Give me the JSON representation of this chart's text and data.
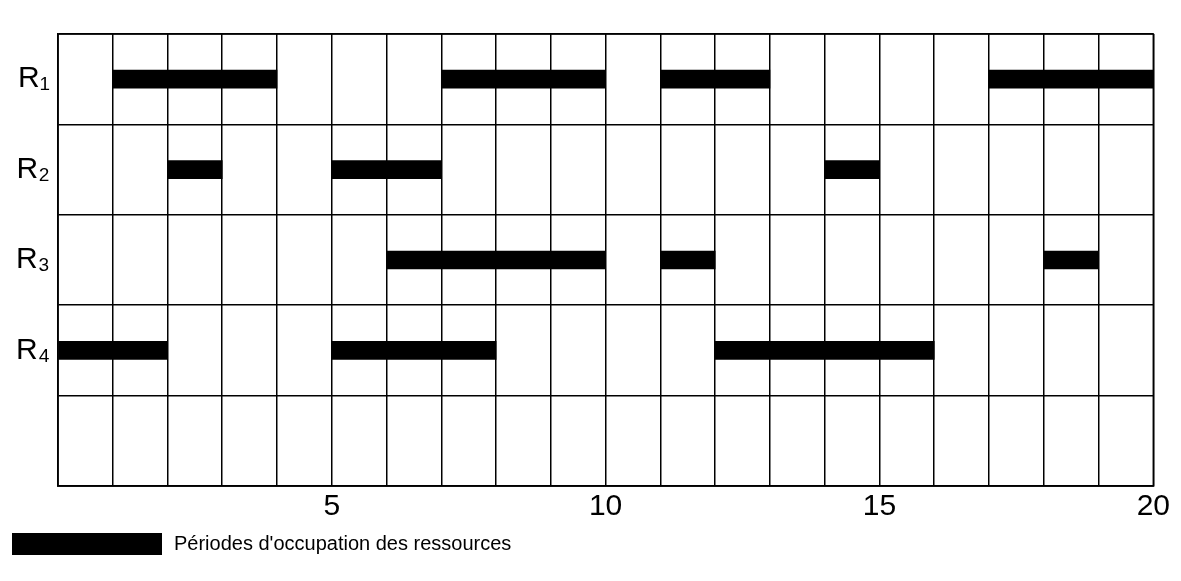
{
  "chart_data": {
    "type": "bar",
    "orientation": "horizontal",
    "categories": [
      "R₁",
      "R₂",
      "R₃",
      "R₄",
      null
    ],
    "series": [
      {
        "name": "Périodes d'occupation des ressources",
        "color": "#000000",
        "base": [
          1,
          2,
          6,
          0,
          null
        ],
        "values": [
          3,
          1,
          4,
          2,
          null
        ]
      },
      {
        "color": "#000000",
        "base": [
          7,
          5,
          11,
          5,
          null
        ],
        "values": [
          3,
          2,
          1,
          3,
          null
        ]
      },
      {
        "color": "#000000",
        "base": [
          11,
          14,
          18,
          12,
          null
        ],
        "values": [
          2,
          1,
          1,
          4,
          null
        ]
      },
      {
        "color": "#000000",
        "base": [
          17,
          null,
          null,
          null,
          null
        ],
        "values": [
          3,
          null,
          null,
          null,
          null
        ]
      }
    ],
    "xlim": [
      0,
      20
    ],
    "xticks": [
      {
        "value": 0,
        "label": null
      },
      {
        "value": 1,
        "label": null
      },
      {
        "value": 2,
        "label": null
      },
      {
        "value": 3,
        "label": null
      },
      {
        "value": 4,
        "label": null
      },
      5,
      {
        "value": 6,
        "label": null
      },
      {
        "value": 7,
        "label": null
      },
      {
        "value": 8,
        "label": null
      },
      {
        "value": 9,
        "label": null
      },
      10,
      {
        "value": 11,
        "label": null
      },
      {
        "value": 12,
        "label": null
      },
      {
        "value": 13,
        "label": null
      },
      {
        "value": 14,
        "label": null
      },
      15,
      {
        "value": 16,
        "label": null
      },
      {
        "value": 17,
        "label": null
      },
      {
        "value": 18,
        "label": null
      },
      {
        "value": 19,
        "label": null
      },
      20
    ],
    "grid": true,
    "legend": "bottom left"
  }
}
